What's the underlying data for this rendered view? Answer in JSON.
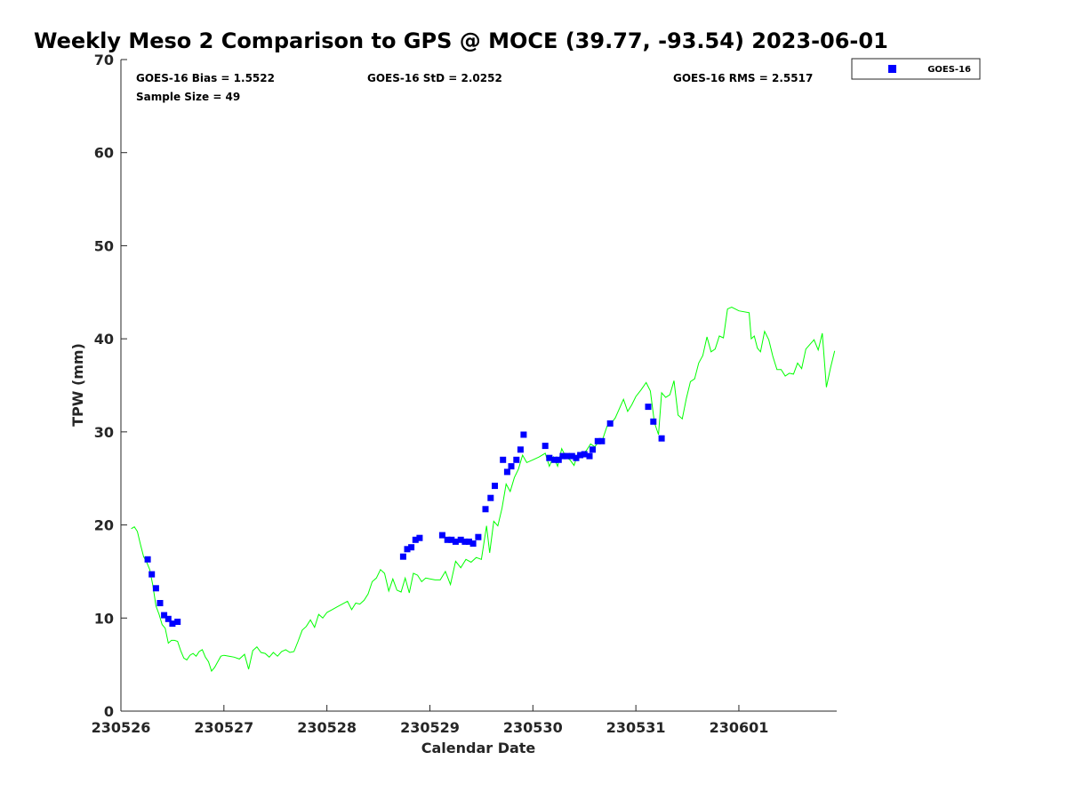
{
  "chart_data": {
    "type": "scatter",
    "title": "Weekly Meso 2 Comparison to GPS @ MOCE (39.77, -93.54) 2023-06-01",
    "xlabel": "Calendar Date",
    "ylabel": "TPW (mm)",
    "xlim": [
      0,
      6.95
    ],
    "ylim": [
      0,
      70
    ],
    "x_categories": [
      "230526",
      "230527",
      "230528",
      "230529",
      "230530",
      "230531",
      "230601"
    ],
    "y_ticks": [
      0,
      10,
      20,
      30,
      40,
      50,
      60,
      70
    ],
    "x_unit_note": "days from 230526 00Z",
    "grid": false,
    "legend": {
      "position": "top-right-outside",
      "entries": [
        "GOES-16"
      ]
    },
    "stats": {
      "bias": "GOES-16 Bias = 1.5522",
      "std": "GOES-16 StD = 2.0252",
      "rms": "GOES-16 RMS = 2.5517",
      "sample": "Sample Size = 49"
    },
    "colors": {
      "goes": "#0000ff",
      "gps": "#00ff00"
    },
    "series": [
      {
        "name": "GOES-16",
        "kind": "scatter",
        "points": [
          [
            0.26,
            16.3
          ],
          [
            0.3,
            14.7
          ],
          [
            0.34,
            13.2
          ],
          [
            0.38,
            11.6
          ],
          [
            0.42,
            10.3
          ],
          [
            0.46,
            9.9
          ],
          [
            0.5,
            9.4
          ],
          [
            0.55,
            9.6
          ],
          [
            2.74,
            16.6
          ],
          [
            2.78,
            17.4
          ],
          [
            2.82,
            17.6
          ],
          [
            2.86,
            18.4
          ],
          [
            2.9,
            18.6
          ],
          [
            3.12,
            18.9
          ],
          [
            3.17,
            18.4
          ],
          [
            3.21,
            18.4
          ],
          [
            3.25,
            18.2
          ],
          [
            3.3,
            18.4
          ],
          [
            3.34,
            18.2
          ],
          [
            3.38,
            18.2
          ],
          [
            3.42,
            18.0
          ],
          [
            3.47,
            18.7
          ],
          [
            3.54,
            21.7
          ],
          [
            3.59,
            22.9
          ],
          [
            3.63,
            24.2
          ],
          [
            3.71,
            27.0
          ],
          [
            3.75,
            25.7
          ],
          [
            3.79,
            26.3
          ],
          [
            3.84,
            27.0
          ],
          [
            3.88,
            28.1
          ],
          [
            3.91,
            29.7
          ],
          [
            4.12,
            28.5
          ],
          [
            4.16,
            27.2
          ],
          [
            4.21,
            27.0
          ],
          [
            4.25,
            27.0
          ],
          [
            4.29,
            27.4
          ],
          [
            4.33,
            27.4
          ],
          [
            4.38,
            27.4
          ],
          [
            4.42,
            27.2
          ],
          [
            4.46,
            27.5
          ],
          [
            4.5,
            27.6
          ],
          [
            4.55,
            27.4
          ],
          [
            4.58,
            28.1
          ],
          [
            4.63,
            29.0
          ],
          [
            4.67,
            29.0
          ],
          [
            4.75,
            30.9
          ],
          [
            5.12,
            32.7
          ],
          [
            5.17,
            31.1
          ],
          [
            5.25,
            29.3
          ]
        ]
      },
      {
        "kind": "line",
        "points": [
          [
            0.1,
            19.6
          ],
          [
            0.13,
            19.8
          ],
          [
            0.16,
            19.3
          ],
          [
            0.19,
            17.9
          ],
          [
            0.22,
            16.6
          ],
          [
            0.25,
            16.0
          ],
          [
            0.28,
            15.2
          ],
          [
            0.31,
            13.5
          ],
          [
            0.34,
            11.3
          ],
          [
            0.37,
            10.4
          ],
          [
            0.4,
            9.3
          ],
          [
            0.43,
            8.9
          ],
          [
            0.46,
            7.3
          ],
          [
            0.49,
            7.6
          ],
          [
            0.52,
            7.6
          ],
          [
            0.55,
            7.5
          ],
          [
            0.58,
            6.5
          ],
          [
            0.61,
            5.7
          ],
          [
            0.64,
            5.5
          ],
          [
            0.67,
            6.0
          ],
          [
            0.7,
            6.2
          ],
          [
            0.73,
            5.9
          ],
          [
            0.76,
            6.4
          ],
          [
            0.79,
            6.6
          ],
          [
            0.82,
            5.8
          ],
          [
            0.85,
            5.3
          ],
          [
            0.88,
            4.3
          ],
          [
            0.91,
            4.7
          ],
          [
            0.94,
            5.3
          ],
          [
            0.97,
            5.9
          ],
          [
            1.0,
            6.0
          ],
          [
            1.05,
            5.9
          ],
          [
            1.1,
            5.8
          ],
          [
            1.15,
            5.6
          ],
          [
            1.2,
            6.1
          ],
          [
            1.24,
            4.5
          ],
          [
            1.28,
            6.5
          ],
          [
            1.32,
            6.9
          ],
          [
            1.36,
            6.3
          ],
          [
            1.4,
            6.2
          ],
          [
            1.44,
            5.8
          ],
          [
            1.48,
            6.3
          ],
          [
            1.52,
            5.9
          ],
          [
            1.56,
            6.4
          ],
          [
            1.6,
            6.6
          ],
          [
            1.64,
            6.3
          ],
          [
            1.68,
            6.4
          ],
          [
            1.72,
            7.5
          ],
          [
            1.76,
            8.7
          ],
          [
            1.8,
            9.1
          ],
          [
            1.84,
            9.8
          ],
          [
            1.88,
            9.0
          ],
          [
            1.92,
            10.4
          ],
          [
            1.96,
            10.0
          ],
          [
            2.0,
            10.6
          ],
          [
            2.05,
            10.9
          ],
          [
            2.1,
            11.2
          ],
          [
            2.15,
            11.5
          ],
          [
            2.2,
            11.8
          ],
          [
            2.24,
            10.9
          ],
          [
            2.28,
            11.6
          ],
          [
            2.32,
            11.5
          ],
          [
            2.36,
            11.9
          ],
          [
            2.4,
            12.6
          ],
          [
            2.44,
            13.9
          ],
          [
            2.48,
            14.3
          ],
          [
            2.52,
            15.2
          ],
          [
            2.56,
            14.8
          ],
          [
            2.6,
            12.9
          ],
          [
            2.64,
            14.2
          ],
          [
            2.68,
            13.0
          ],
          [
            2.72,
            12.8
          ],
          [
            2.76,
            14.3
          ],
          [
            2.8,
            12.7
          ],
          [
            2.84,
            14.8
          ],
          [
            2.88,
            14.6
          ],
          [
            2.92,
            13.9
          ],
          [
            2.96,
            14.3
          ],
          [
            3.0,
            14.2
          ],
          [
            3.05,
            14.1
          ],
          [
            3.1,
            14.1
          ],
          [
            3.15,
            15.0
          ],
          [
            3.2,
            13.6
          ],
          [
            3.25,
            16.1
          ],
          [
            3.3,
            15.4
          ],
          [
            3.35,
            16.3
          ],
          [
            3.4,
            16.0
          ],
          [
            3.45,
            16.5
          ],
          [
            3.5,
            16.3
          ],
          [
            3.55,
            19.9
          ],
          [
            3.58,
            17.0
          ],
          [
            3.62,
            20.4
          ],
          [
            3.66,
            19.9
          ],
          [
            3.7,
            21.8
          ],
          [
            3.74,
            24.4
          ],
          [
            3.78,
            23.6
          ],
          [
            3.82,
            25.1
          ],
          [
            3.86,
            26.0
          ],
          [
            3.9,
            27.5
          ],
          [
            3.94,
            26.7
          ],
          [
            4.0,
            27.0
          ],
          [
            4.06,
            27.3
          ],
          [
            4.12,
            27.7
          ],
          [
            4.16,
            26.3
          ],
          [
            4.2,
            27.3
          ],
          [
            4.24,
            26.3
          ],
          [
            4.28,
            28.2
          ],
          [
            4.32,
            27.3
          ],
          [
            4.36,
            27.0
          ],
          [
            4.4,
            26.4
          ],
          [
            4.44,
            27.8
          ],
          [
            4.48,
            27.6
          ],
          [
            4.52,
            28.0
          ],
          [
            4.56,
            28.7
          ],
          [
            4.6,
            28.4
          ],
          [
            4.64,
            28.9
          ],
          [
            4.68,
            29.3
          ],
          [
            4.72,
            30.6
          ],
          [
            4.76,
            30.9
          ],
          [
            4.8,
            31.5
          ],
          [
            4.84,
            32.5
          ],
          [
            4.88,
            33.5
          ],
          [
            4.92,
            32.2
          ],
          [
            4.96,
            32.9
          ],
          [
            5.0,
            33.8
          ],
          [
            5.05,
            34.5
          ],
          [
            5.1,
            35.3
          ],
          [
            5.14,
            34.4
          ],
          [
            5.18,
            31.0
          ],
          [
            5.22,
            29.7
          ],
          [
            5.25,
            34.2
          ],
          [
            5.29,
            33.7
          ],
          [
            5.33,
            34.0
          ],
          [
            5.37,
            35.5
          ],
          [
            5.41,
            31.8
          ],
          [
            5.45,
            31.4
          ],
          [
            5.49,
            33.6
          ],
          [
            5.53,
            35.4
          ],
          [
            5.57,
            35.7
          ],
          [
            5.61,
            37.4
          ],
          [
            5.65,
            38.2
          ],
          [
            5.69,
            40.2
          ],
          [
            5.73,
            38.6
          ],
          [
            5.77,
            38.9
          ],
          [
            5.81,
            40.3
          ],
          [
            5.85,
            40.1
          ],
          [
            5.89,
            43.2
          ],
          [
            5.93,
            43.4
          ],
          [
            6.0,
            43.0
          ],
          [
            6.1,
            42.8
          ],
          [
            6.12,
            40.0
          ],
          [
            6.15,
            40.3
          ],
          [
            6.18,
            39.0
          ],
          [
            6.21,
            38.6
          ],
          [
            6.25,
            40.8
          ],
          [
            6.29,
            39.9
          ],
          [
            6.33,
            38.1
          ],
          [
            6.37,
            36.7
          ],
          [
            6.41,
            36.7
          ],
          [
            6.45,
            36.0
          ],
          [
            6.49,
            36.3
          ],
          [
            6.53,
            36.2
          ],
          [
            6.57,
            37.4
          ],
          [
            6.61,
            36.8
          ],
          [
            6.65,
            38.9
          ],
          [
            6.69,
            39.4
          ],
          [
            6.73,
            39.9
          ],
          [
            6.77,
            38.8
          ],
          [
            6.81,
            40.6
          ],
          [
            6.85,
            34.8
          ],
          [
            6.89,
            36.9
          ],
          [
            6.93,
            38.7
          ]
        ]
      }
    ]
  }
}
